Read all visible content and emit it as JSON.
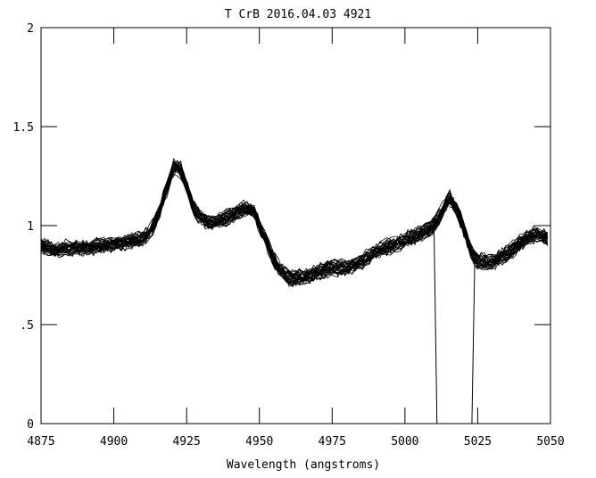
{
  "chart_data": {
    "type": "line",
    "title": "T CrB 2016.04.03 4921",
    "xlabel": "Wavelength (angstroms)",
    "ylabel": "",
    "xlim": [
      4875,
      5050
    ],
    "ylim": [
      0,
      2
    ],
    "xticks": [
      "4875",
      "4900",
      "4925",
      "4950",
      "4975",
      "5000",
      "5025",
      "5050"
    ],
    "yticks": [
      "0",
      ".5",
      "1",
      "1.5",
      "2"
    ],
    "ytick_values": [
      0,
      0.5,
      1,
      1.5,
      2
    ],
    "xtick_values": [
      4875,
      4900,
      4925,
      4950,
      4975,
      5000,
      5025,
      5050
    ],
    "grid": false,
    "line_color": "#000000",
    "trace_count_approx": 30,
    "mean_spectrum": {
      "x": [
        4875,
        4880,
        4885,
        4890,
        4895,
        4900,
        4905,
        4910,
        4913,
        4915,
        4918,
        4921,
        4923,
        4925,
        4928,
        4932,
        4936,
        4940,
        4945,
        4948,
        4950,
        4953,
        4956,
        4960,
        4965,
        4970,
        4975,
        4980,
        4985,
        4990,
        4995,
        5000,
        5005,
        5010,
        5013,
        5015,
        5018,
        5021,
        5023,
        5025,
        5030,
        5035,
        5040,
        5045,
        5050
      ],
      "y": [
        0.9,
        0.88,
        0.89,
        0.89,
        0.9,
        0.91,
        0.92,
        0.94,
        0.98,
        1.05,
        1.18,
        1.31,
        1.28,
        1.2,
        1.07,
        1.02,
        1.02,
        1.05,
        1.09,
        1.08,
        1.0,
        0.9,
        0.8,
        0.74,
        0.74,
        0.77,
        0.79,
        0.79,
        0.82,
        0.87,
        0.9,
        0.93,
        0.96,
        1.0,
        1.08,
        1.15,
        1.08,
        0.95,
        0.86,
        0.82,
        0.82,
        0.86,
        0.92,
        0.96,
        0.93
      ]
    },
    "dropout_trace": {
      "x": [
        5010,
        5011,
        5023,
        5024
      ],
      "y": [
        0.98,
        0,
        0,
        0.84
      ]
    }
  }
}
